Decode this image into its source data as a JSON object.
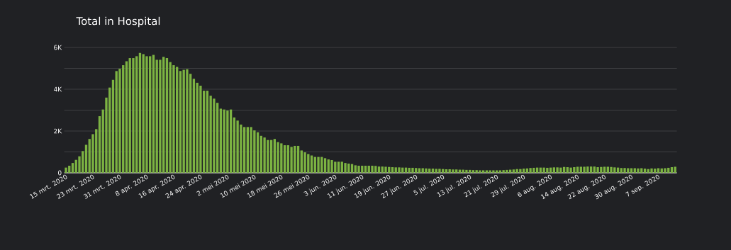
{
  "chart_data": {
    "type": "bar",
    "title": "Total in Hospital",
    "categories": [
      "15 mrt. 2020",
      null,
      null,
      null,
      null,
      null,
      null,
      null,
      "23 mrt. 2020",
      null,
      null,
      null,
      null,
      null,
      null,
      null,
      "31 mrt. 2020",
      null,
      null,
      null,
      null,
      null,
      null,
      null,
      "8 apr. 2020",
      null,
      null,
      null,
      null,
      null,
      null,
      null,
      "16 apr. 2020",
      null,
      null,
      null,
      null,
      null,
      null,
      null,
      "24 apr. 2020",
      null,
      null,
      null,
      null,
      null,
      null,
      null,
      "2 mei 2020",
      null,
      null,
      null,
      null,
      null,
      null,
      null,
      "10 mei 2020",
      null,
      null,
      null,
      null,
      null,
      null,
      null,
      "18 mei 2020",
      null,
      null,
      null,
      null,
      null,
      null,
      null,
      "26 mei 2020",
      null,
      null,
      null,
      null,
      null,
      null,
      null,
      "3 jun. 2020",
      null,
      null,
      null,
      null,
      null,
      null,
      null,
      "11 jun. 2020",
      null,
      null,
      null,
      null,
      null,
      null,
      null,
      "19 jun. 2020",
      null,
      null,
      null,
      null,
      null,
      null,
      null,
      "27 jun. 2020",
      null,
      null,
      null,
      null,
      null,
      null,
      null,
      "5 jul. 2020",
      null,
      null,
      null,
      null,
      null,
      null,
      null,
      "13 jul. 2020",
      null,
      null,
      null,
      null,
      null,
      null,
      null,
      "21 jul. 2020",
      null,
      null,
      null,
      null,
      null,
      null,
      null,
      "29 jul. 2020",
      null,
      null,
      null,
      null,
      null,
      null,
      null,
      "6 aug. 2020",
      null,
      null,
      null,
      null,
      null,
      null,
      null,
      "14 aug. 2020",
      null,
      null,
      null,
      null,
      null,
      null,
      null,
      "22 aug. 2020",
      null,
      null,
      null,
      null,
      null,
      null,
      null,
      "30 aug. 2020",
      null,
      null,
      null,
      null,
      null,
      null,
      null,
      "7 sep. 2020",
      null,
      null,
      null,
      null,
      null
    ],
    "values": [
      250,
      340,
      470,
      620,
      790,
      1040,
      1340,
      1620,
      1850,
      2090,
      2710,
      3030,
      3600,
      4080,
      4450,
      4870,
      4980,
      5150,
      5340,
      5490,
      5490,
      5580,
      5740,
      5680,
      5580,
      5580,
      5640,
      5410,
      5410,
      5550,
      5490,
      5300,
      5150,
      5070,
      4870,
      4930,
      4960,
      4740,
      4500,
      4310,
      4170,
      3930,
      3930,
      3690,
      3550,
      3350,
      3070,
      3030,
      2980,
      3030,
      2650,
      2500,
      2310,
      2190,
      2190,
      2190,
      2030,
      1940,
      1770,
      1690,
      1570,
      1570,
      1620,
      1470,
      1410,
      1320,
      1320,
      1240,
      1290,
      1290,
      1070,
      980,
      900,
      830,
      760,
      760,
      760,
      700,
      640,
      610,
      530,
      530,
      530,
      470,
      440,
      420,
      360,
      340,
      340,
      340,
      340,
      340,
      330,
      300,
      300,
      290,
      280,
      270,
      260,
      260,
      250,
      250,
      240,
      240,
      230,
      220,
      220,
      210,
      200,
      200,
      190,
      190,
      180,
      170,
      170,
      160,
      160,
      150,
      150,
      140,
      140,
      130,
      130,
      120,
      120,
      120,
      120,
      120,
      120,
      120,
      130,
      140,
      150,
      160,
      180,
      180,
      200,
      210,
      230,
      240,
      250,
      250,
      250,
      240,
      250,
      260,
      260,
      250,
      280,
      270,
      250,
      270,
      290,
      290,
      290,
      300,
      300,
      300,
      270,
      280,
      290,
      290,
      280,
      260,
      250,
      230,
      230,
      220,
      220,
      220,
      210,
      220,
      200,
      180,
      210,
      200,
      220,
      210,
      220,
      240,
      270,
      290
    ],
    "color": "#7cb342",
    "ylim": [
      0,
      6000
    ],
    "yticks": [
      0,
      {
        "value": 1000,
        "label": null
      },
      {
        "value": 2000,
        "label": "2K"
      },
      {
        "value": 3000,
        "label": null
      },
      {
        "value": 4000,
        "label": "4K"
      },
      {
        "value": 5000,
        "label": null
      },
      {
        "value": 6000,
        "label": "6K"
      }
    ],
    "grid": true
  }
}
